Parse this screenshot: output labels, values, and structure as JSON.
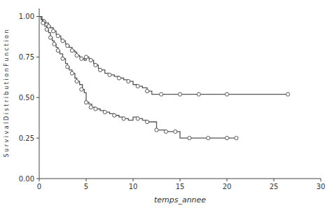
{
  "chart_data": {
    "type": "step",
    "xlabel": "temps_annee",
    "ylabel": "S u r v i v a l   D i s t r i b u t i o n   F u n c t i o n",
    "xlim": [
      0,
      30
    ],
    "ylim": [
      0.0,
      1.05
    ],
    "xticks": [
      0,
      5,
      10,
      15,
      20,
      25,
      30
    ],
    "yticks": [
      {
        "value": 0.0,
        "label": "0.00"
      },
      {
        "value": 0.25,
        "label": "0.25"
      },
      {
        "value": 0.5,
        "label": "0.50"
      },
      {
        "value": 0.75,
        "label": "0.75"
      },
      {
        "value": 1.0,
        "label": "1.00"
      }
    ],
    "grid": false,
    "series": [
      {
        "type": "step",
        "color": "#555555",
        "x": [
          0,
          0.3,
          0.5,
          0.7,
          1.0,
          1.2,
          1.5,
          1.8,
          2.0,
          2.3,
          2.5,
          2.8,
          3.0,
          3.2,
          3.5,
          3.8,
          4.0,
          4.3,
          4.5,
          4.8,
          5.0,
          5.3,
          5.5,
          5.8,
          6.0,
          6.3,
          6.5,
          7.0,
          7.5,
          8.0,
          8.5,
          9.0,
          9.5,
          10.0,
          10.5,
          11.0,
          11.5,
          12.0,
          12.5,
          26.5
        ],
        "values": [
          1.0,
          0.98,
          0.97,
          0.96,
          0.94,
          0.93,
          0.91,
          0.89,
          0.88,
          0.86,
          0.85,
          0.83,
          0.82,
          0.81,
          0.79,
          0.78,
          0.76,
          0.75,
          0.74,
          0.73,
          0.75,
          0.74,
          0.73,
          0.71,
          0.7,
          0.68,
          0.67,
          0.65,
          0.64,
          0.63,
          0.62,
          0.61,
          0.6,
          0.58,
          0.57,
          0.56,
          0.54,
          0.52,
          0.52,
          0.52
        ]
      },
      {
        "type": "scatter",
        "marker": "open-circle",
        "color": "#555555",
        "x": [
          0.5,
          1.0,
          1.5,
          2.0,
          2.5,
          3.0,
          3.5,
          4.0,
          4.5,
          5.0,
          5.5,
          6.0,
          6.5,
          7.5,
          8.5,
          9.5,
          10.5,
          11.5,
          13.0,
          15.0,
          17.0,
          20.0,
          26.5
        ],
        "values": [
          0.97,
          0.94,
          0.91,
          0.88,
          0.85,
          0.82,
          0.79,
          0.76,
          0.74,
          0.75,
          0.73,
          0.7,
          0.67,
          0.64,
          0.62,
          0.6,
          0.57,
          0.54,
          0.52,
          0.52,
          0.52,
          0.52,
          0.52
        ]
      },
      {
        "type": "step",
        "color": "#555555",
        "x": [
          0,
          0.2,
          0.4,
          0.6,
          0.8,
          1.0,
          1.2,
          1.4,
          1.6,
          1.8,
          2.0,
          2.2,
          2.5,
          2.8,
          3.0,
          3.2,
          3.5,
          3.8,
          4.0,
          4.3,
          4.6,
          4.8,
          5.0,
          5.3,
          5.6,
          6.0,
          6.5,
          7.0,
          7.5,
          8.0,
          8.5,
          9.0,
          9.5,
          10.0,
          10.5,
          11.0,
          11.5,
          12.0,
          12.5,
          13.0,
          13.5,
          14.0,
          14.5,
          15.0,
          16.0,
          17.0,
          18.0,
          19.0,
          20.0,
          21.0
        ],
        "values": [
          1.0,
          0.98,
          0.96,
          0.94,
          0.92,
          0.9,
          0.87,
          0.85,
          0.83,
          0.81,
          0.79,
          0.77,
          0.74,
          0.71,
          0.69,
          0.67,
          0.65,
          0.62,
          0.6,
          0.58,
          0.55,
          0.53,
          0.47,
          0.46,
          0.44,
          0.43,
          0.42,
          0.41,
          0.4,
          0.39,
          0.38,
          0.37,
          0.36,
          0.38,
          0.37,
          0.36,
          0.35,
          0.35,
          0.3,
          0.3,
          0.29,
          0.29,
          0.29,
          0.25,
          0.25,
          0.25,
          0.25,
          0.25,
          0.25,
          0.25
        ]
      },
      {
        "type": "scatter",
        "marker": "open-circle",
        "color": "#555555",
        "x": [
          0.4,
          0.8,
          1.2,
          1.6,
          2.0,
          2.5,
          3.0,
          3.5,
          4.0,
          4.5,
          5.0,
          5.5,
          6.0,
          7.0,
          8.0,
          9.0,
          10.5,
          11.5,
          12.5,
          13.5,
          14.5,
          16.0,
          18.0,
          20.0,
          21.0
        ],
        "values": [
          0.96,
          0.92,
          0.87,
          0.83,
          0.79,
          0.74,
          0.69,
          0.65,
          0.6,
          0.55,
          0.47,
          0.44,
          0.43,
          0.41,
          0.39,
          0.37,
          0.37,
          0.35,
          0.3,
          0.29,
          0.29,
          0.25,
          0.25,
          0.25,
          0.25
        ]
      }
    ]
  }
}
